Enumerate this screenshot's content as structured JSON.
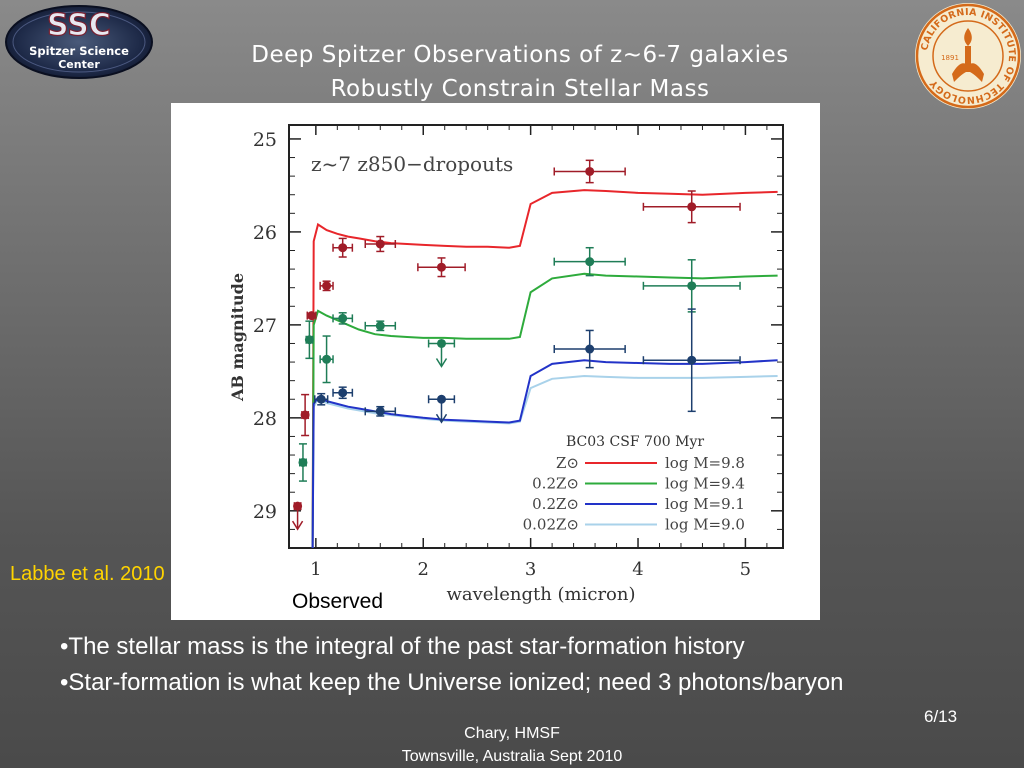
{
  "logos": {
    "ssc": {
      "text_top": "SSC",
      "text_line1": "Spitzer Science",
      "text_line2": "Center"
    },
    "caltech": {
      "ring_text": "CALIFORNIA INSTITUTE OF TECHNOLOGY",
      "year": "1891"
    }
  },
  "title": {
    "line1": "Deep Spitzer Observations of z~6-7 galaxies",
    "line2": "Robustly Constrain Stellar Mass"
  },
  "citation": "Labbe et al. 2010",
  "observed_label": "Observed",
  "bullets": [
    "•The stellar mass is the integral of the past star-formation history",
    "•Star-formation is what keep the Universe ionized; need 3 photons/baryon"
  ],
  "slide_number": "6/13",
  "footer": {
    "line1": "Chary, HMSF",
    "line2": "Townsville, Australia Sept 2010"
  },
  "colors": {
    "red": "#e8262b",
    "green": "#2eab3c",
    "blue": "#2233c8",
    "lightblue": "#a9d2ea",
    "red_pts": "#a01c28",
    "green_pts": "#1f7d57",
    "blue_pts": "#1d3f6e",
    "citation": "#ffd400"
  },
  "chart_data": {
    "type": "line",
    "annotation": "z~7 z850−dropouts",
    "xlabel": "wavelength (micron)",
    "ylabel": "AB magnitude",
    "xlim": [
      0.75,
      5.35
    ],
    "ylim": [
      29.4,
      24.85
    ],
    "x_ticks": [
      1,
      2,
      3,
      4,
      5
    ],
    "y_ticks": [
      25,
      26,
      27,
      28,
      29
    ],
    "legend_title": "BC03 CSF 700 Myr",
    "legend_position": "bottom-right",
    "series": [
      {
        "name": "log M=9.8",
        "metallicity": "Z⊙",
        "color": "red",
        "x": [
          0.97,
          0.98,
          1.02,
          1.1,
          1.2,
          1.3,
          1.4,
          1.55,
          1.7,
          1.85,
          2.0,
          2.2,
          2.4,
          2.6,
          2.8,
          2.9,
          3.0,
          3.2,
          3.5,
          3.7,
          4.0,
          4.3,
          4.6,
          5.0,
          5.3
        ],
        "y": [
          29.4,
          26.1,
          25.92,
          25.98,
          26.02,
          26.05,
          26.07,
          26.1,
          26.12,
          26.13,
          26.14,
          26.15,
          26.16,
          26.16,
          26.17,
          26.15,
          25.7,
          25.58,
          25.55,
          25.56,
          25.58,
          25.59,
          25.6,
          25.58,
          25.57
        ]
      },
      {
        "name": "log M=9.4",
        "metallicity": "0.2Z⊙",
        "color": "green",
        "x": [
          0.97,
          0.98,
          1.02,
          1.1,
          1.2,
          1.3,
          1.4,
          1.55,
          1.7,
          1.85,
          2.0,
          2.2,
          2.4,
          2.6,
          2.8,
          2.9,
          3.0,
          3.2,
          3.5,
          3.7,
          4.0,
          4.3,
          4.6,
          5.0,
          5.3
        ],
        "y": [
          29.4,
          27.0,
          26.85,
          26.9,
          26.95,
          27.0,
          27.05,
          27.1,
          27.12,
          27.13,
          27.14,
          27.14,
          27.15,
          27.15,
          27.15,
          27.13,
          26.65,
          26.5,
          26.45,
          26.47,
          26.48,
          26.49,
          26.5,
          26.48,
          26.47
        ]
      },
      {
        "name": "log M=9.1",
        "metallicity": "0.2Z⊙",
        "color": "blue",
        "x": [
          0.97,
          0.98,
          1.02,
          1.1,
          1.2,
          1.3,
          1.4,
          1.55,
          1.7,
          1.85,
          2.0,
          2.2,
          2.4,
          2.6,
          2.8,
          2.9,
          3.0,
          3.2,
          3.5,
          3.7,
          4.0,
          4.3,
          4.6,
          5.0,
          5.3
        ],
        "y": [
          29.4,
          27.85,
          27.78,
          27.82,
          27.85,
          27.88,
          27.9,
          27.93,
          27.96,
          27.98,
          28.0,
          28.02,
          28.03,
          28.04,
          28.05,
          28.03,
          27.55,
          27.42,
          27.38,
          27.4,
          27.41,
          27.42,
          27.42,
          27.4,
          27.38
        ]
      },
      {
        "name": "log M=9.0",
        "metallicity": "0.02Z⊙",
        "color": "lightblue",
        "x": [
          0.97,
          0.98,
          1.02,
          1.1,
          1.2,
          1.3,
          1.4,
          1.55,
          1.7,
          1.85,
          2.0,
          2.2,
          2.4,
          2.6,
          2.8,
          2.9,
          3.0,
          3.2,
          3.5,
          3.7,
          4.0,
          4.3,
          4.6,
          5.0,
          5.3
        ],
        "y": [
          29.4,
          27.88,
          27.8,
          27.84,
          27.87,
          27.9,
          27.92,
          27.95,
          27.97,
          27.99,
          28.01,
          28.03,
          28.04,
          28.05,
          28.06,
          28.04,
          27.68,
          27.58,
          27.55,
          27.56,
          27.57,
          27.57,
          27.57,
          27.56,
          27.55
        ]
      }
    ],
    "points": [
      {
        "group": "red",
        "color": "red_pts",
        "data": [
          {
            "x": 0.83,
            "y": 28.95,
            "xerr": 0.03,
            "upper_limit": true
          },
          {
            "x": 0.9,
            "y": 27.97,
            "xerr": 0.03,
            "yerr": 0.22
          },
          {
            "x": 0.96,
            "y": 26.9,
            "xerr": 0.04,
            "yerr": 0.0
          },
          {
            "x": 1.1,
            "y": 26.58,
            "xerr": 0.06,
            "yerr": 0.05
          },
          {
            "x": 1.25,
            "y": 26.17,
            "xerr": 0.09,
            "yerr": 0.1
          },
          {
            "x": 1.6,
            "y": 26.13,
            "xerr": 0.14,
            "yerr": 0.08
          },
          {
            "x": 2.17,
            "y": 26.38,
            "xerr": 0.22,
            "yerr": 0.1
          },
          {
            "x": 3.55,
            "y": 25.35,
            "xerr": 0.33,
            "yerr": 0.12
          },
          {
            "x": 4.5,
            "y": 25.73,
            "xerr": 0.45,
            "yerr": 0.17
          }
        ]
      },
      {
        "group": "green",
        "color": "green_pts",
        "data": [
          {
            "x": 0.88,
            "y": 28.48,
            "xerr": 0.03,
            "yerr": 0.2
          },
          {
            "x": 0.94,
            "y": 27.16,
            "xerr": 0.03,
            "yerr": 0.2
          },
          {
            "x": 1.1,
            "y": 27.37,
            "xerr": 0.06,
            "yerr": 0.25
          },
          {
            "x": 1.25,
            "y": 26.93,
            "xerr": 0.09,
            "yerr": 0.06
          },
          {
            "x": 1.6,
            "y": 27.01,
            "xerr": 0.14,
            "yerr": 0.05
          },
          {
            "x": 2.17,
            "y": 27.2,
            "xerr": 0.12,
            "upper_limit": true
          },
          {
            "x": 3.55,
            "y": 26.32,
            "xerr": 0.33,
            "yerr": 0.15
          },
          {
            "x": 4.5,
            "y": 26.58,
            "xerr": 0.45,
            "yerr": 0.28
          }
        ]
      },
      {
        "group": "blue",
        "color": "blue_pts",
        "data": [
          {
            "x": 1.05,
            "y": 27.8,
            "xerr": 0.06,
            "yerr": 0.06
          },
          {
            "x": 1.25,
            "y": 27.73,
            "xerr": 0.09,
            "yerr": 0.06
          },
          {
            "x": 1.6,
            "y": 27.93,
            "xerr": 0.14,
            "yerr": 0.05
          },
          {
            "x": 2.17,
            "y": 27.8,
            "xerr": 0.12,
            "upper_limit": true
          },
          {
            "x": 3.55,
            "y": 27.26,
            "xerr": 0.33,
            "yerr": 0.2
          },
          {
            "x": 4.5,
            "y": 27.38,
            "xerr": 0.45,
            "yerr": 0.55
          }
        ]
      }
    ]
  }
}
